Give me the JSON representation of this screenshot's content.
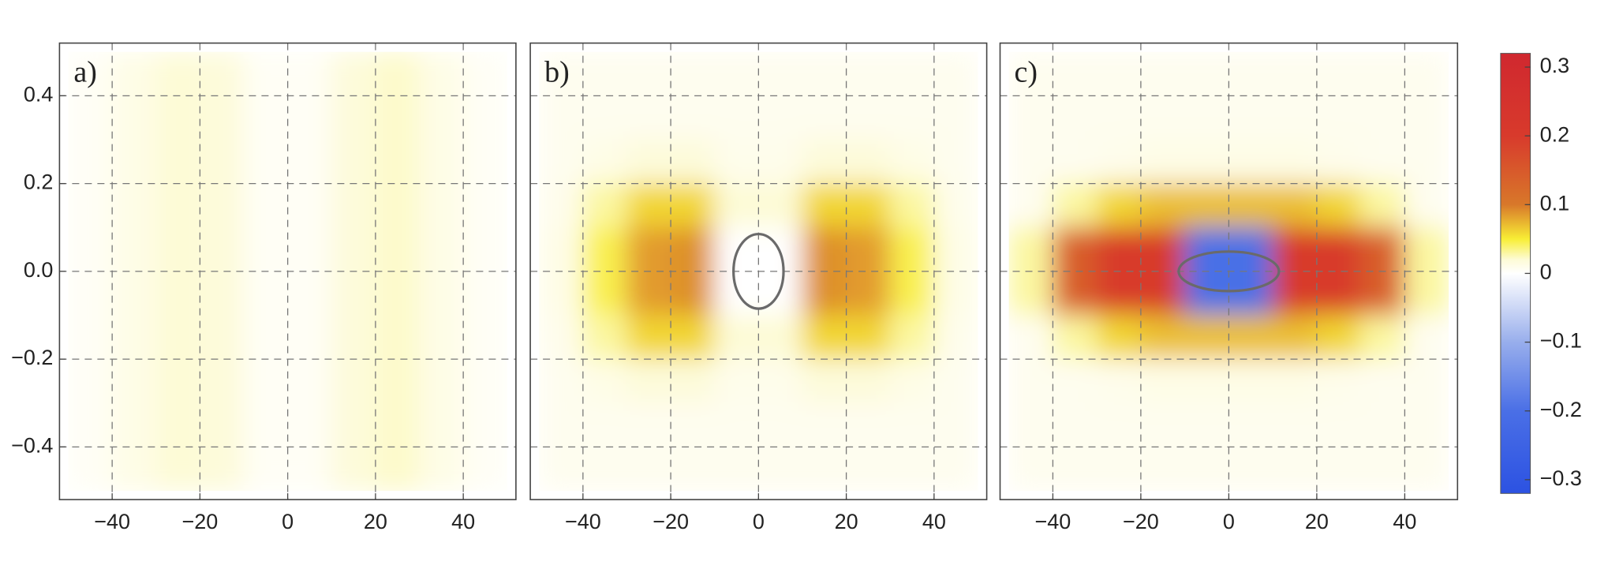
{
  "chart_data": [
    {
      "type": "heatmap",
      "label": "a)",
      "x": [
        -45,
        -35,
        -25,
        -15,
        -5,
        5,
        15,
        25,
        35,
        45
      ],
      "y": [
        0.45,
        0.35,
        0.25,
        0.15,
        0.05,
        -0.05,
        -0.15,
        -0.25,
        -0.35,
        -0.45
      ],
      "values": [
        [
          0.005,
          0.012,
          0.02,
          0.018,
          0.005,
          0.005,
          0.018,
          0.022,
          0.012,
          0.005
        ],
        [
          0.005,
          0.012,
          0.02,
          0.018,
          0.005,
          0.005,
          0.018,
          0.022,
          0.012,
          0.005
        ],
        [
          0.005,
          0.012,
          0.02,
          0.018,
          0.005,
          0.005,
          0.018,
          0.022,
          0.012,
          0.005
        ],
        [
          0.005,
          0.012,
          0.02,
          0.018,
          0.005,
          0.005,
          0.018,
          0.022,
          0.012,
          0.005
        ],
        [
          0.005,
          0.012,
          0.02,
          0.018,
          0.005,
          0.005,
          0.018,
          0.022,
          0.012,
          0.005
        ],
        [
          0.005,
          0.012,
          0.02,
          0.018,
          0.005,
          0.005,
          0.018,
          0.022,
          0.012,
          0.005
        ],
        [
          0.005,
          0.012,
          0.02,
          0.018,
          0.005,
          0.005,
          0.018,
          0.022,
          0.012,
          0.005
        ],
        [
          0.005,
          0.012,
          0.02,
          0.018,
          0.005,
          0.005,
          0.018,
          0.022,
          0.012,
          0.005
        ],
        [
          0.005,
          0.012,
          0.02,
          0.018,
          0.005,
          0.005,
          0.018,
          0.022,
          0.012,
          0.005
        ],
        [
          0.005,
          0.012,
          0.02,
          0.018,
          0.005,
          0.005,
          0.018,
          0.022,
          0.012,
          0.005
        ]
      ],
      "xlim": [
        -52,
        52
      ],
      "ylim": [
        -0.52,
        0.52
      ],
      "xticks": [
        {
          "value": -40,
          "label": "−40"
        },
        {
          "value": -20,
          "label": "−20"
        },
        0,
        20,
        40
      ],
      "yticks": [
        {
          "value": -0.4,
          "label": "−0.4"
        },
        {
          "value": -0.2,
          "label": "−0.2"
        },
        {
          "value": 0,
          "label": "0.0"
        },
        0.2,
        0.4
      ],
      "grid": true
    },
    {
      "type": "heatmap",
      "label": "b)",
      "x": [
        -45,
        -35,
        -25,
        -15,
        -5,
        5,
        15,
        25,
        35,
        45
      ],
      "y": [
        0.45,
        0.35,
        0.25,
        0.15,
        0.05,
        -0.05,
        -0.15,
        -0.25,
        -0.35,
        -0.45
      ],
      "values": [
        [
          0.008,
          0.008,
          0.008,
          0.008,
          0.008,
          0.008,
          0.008,
          0.008,
          0.008,
          0.008
        ],
        [
          0.008,
          0.008,
          0.008,
          0.008,
          0.008,
          0.008,
          0.008,
          0.008,
          0.008,
          0.008
        ],
        [
          0.008,
          0.012,
          0.018,
          0.018,
          0.01,
          0.01,
          0.018,
          0.018,
          0.012,
          0.008
        ],
        [
          0.01,
          0.03,
          0.06,
          0.06,
          0.02,
          0.02,
          0.06,
          0.06,
          0.03,
          0.01
        ],
        [
          0.012,
          0.045,
          0.085,
          0.09,
          0.0,
          0.0,
          0.09,
          0.085,
          0.045,
          0.012
        ],
        [
          0.012,
          0.045,
          0.085,
          0.09,
          0.0,
          0.0,
          0.09,
          0.085,
          0.045,
          0.012
        ],
        [
          0.01,
          0.03,
          0.06,
          0.06,
          0.02,
          0.02,
          0.06,
          0.06,
          0.03,
          0.01
        ],
        [
          0.008,
          0.012,
          0.018,
          0.018,
          0.01,
          0.01,
          0.018,
          0.018,
          0.012,
          0.008
        ],
        [
          0.008,
          0.008,
          0.008,
          0.008,
          0.008,
          0.008,
          0.008,
          0.008,
          0.008,
          0.008
        ],
        [
          0.008,
          0.008,
          0.008,
          0.008,
          0.008,
          0.008,
          0.008,
          0.008,
          0.008,
          0.008
        ]
      ],
      "contour": {
        "cx": 0,
        "cy": 0,
        "rx": 5.7,
        "ry": 0.085
      },
      "xlim": [
        -52,
        52
      ],
      "ylim": [
        -0.52,
        0.52
      ],
      "xticks": [
        {
          "value": -40,
          "label": "−40"
        },
        {
          "value": -20,
          "label": "−20"
        },
        0,
        20,
        40
      ],
      "grid": true
    },
    {
      "type": "heatmap",
      "label": "c)",
      "x": [
        -45,
        -35,
        -25,
        -15,
        -5,
        5,
        15,
        25,
        35,
        45
      ],
      "y": [
        0.45,
        0.35,
        0.25,
        0.15,
        0.05,
        -0.05,
        -0.15,
        -0.25,
        -0.35,
        -0.45
      ],
      "values": [
        [
          0.008,
          0.008,
          0.008,
          0.008,
          0.008,
          0.008,
          0.008,
          0.008,
          0.008,
          0.008
        ],
        [
          0.008,
          0.008,
          0.008,
          0.008,
          0.008,
          0.008,
          0.008,
          0.008,
          0.008,
          0.008
        ],
        [
          0.008,
          0.008,
          0.01,
          0.012,
          0.012,
          0.012,
          0.012,
          0.01,
          0.008,
          0.008
        ],
        [
          0.008,
          0.03,
          0.06,
          0.07,
          0.07,
          0.07,
          0.07,
          0.06,
          0.03,
          0.008
        ],
        [
          0.03,
          0.14,
          0.2,
          0.2,
          -0.2,
          -0.2,
          0.2,
          0.2,
          0.14,
          0.03
        ],
        [
          0.03,
          0.14,
          0.2,
          0.2,
          -0.2,
          -0.2,
          0.2,
          0.2,
          0.14,
          0.03
        ],
        [
          0.008,
          0.03,
          0.06,
          0.07,
          0.07,
          0.07,
          0.07,
          0.06,
          0.03,
          0.008
        ],
        [
          0.008,
          0.008,
          0.01,
          0.012,
          0.012,
          0.012,
          0.012,
          0.01,
          0.008,
          0.008
        ],
        [
          0.008,
          0.008,
          0.008,
          0.008,
          0.008,
          0.008,
          0.008,
          0.008,
          0.008,
          0.008
        ],
        [
          0.008,
          0.008,
          0.008,
          0.008,
          0.008,
          0.008,
          0.008,
          0.008,
          0.008,
          0.008
        ]
      ],
      "contour": {
        "cx": 0,
        "cy": 0,
        "rx": 11.4,
        "ry": 0.045
      },
      "xlim": [
        -52,
        52
      ],
      "ylim": [
        -0.52,
        0.52
      ],
      "xticks": [
        {
          "value": -40,
          "label": "−40"
        },
        {
          "value": -20,
          "label": "−20"
        },
        0,
        20,
        40
      ],
      "grid": true
    },
    {
      "type": "colorbar",
      "stops": [
        {
          "value": -0.32,
          "color": "#2c52e2"
        },
        {
          "value": -0.2,
          "color": "#4a6fe6"
        },
        {
          "value": -0.1,
          "color": "#98aeec"
        },
        {
          "value": 0,
          "color": "#ffffff"
        },
        {
          "value": 0.02,
          "color": "#fdfbd6"
        },
        {
          "value": 0.05,
          "color": "#f8ee35"
        },
        {
          "value": 0.1,
          "color": "#d8782a"
        },
        {
          "value": 0.2,
          "color": "#d83a2c"
        },
        {
          "value": 0.32,
          "color": "#d0282f"
        }
      ],
      "ylim": [
        -0.32,
        0.32
      ],
      "yticks": [
        {
          "value": -0.3,
          "label": "−0.3"
        },
        {
          "value": -0.2,
          "label": "−0.2"
        },
        {
          "value": -0.1,
          "label": "−0.1"
        },
        0,
        0.1,
        0.2,
        0.3
      ]
    }
  ]
}
